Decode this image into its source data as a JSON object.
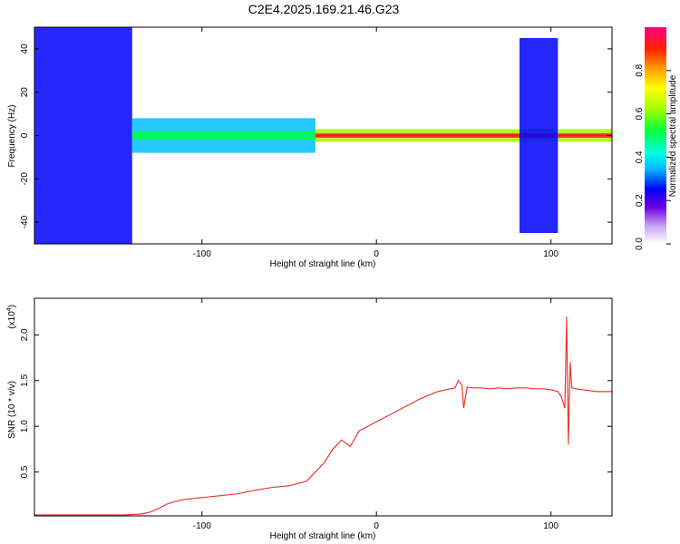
{
  "title": "C2E4.2025.169.21.46.G23",
  "chart_data": [
    {
      "type": "heatmap",
      "xlabel": "Height of straight line (km)",
      "ylabel": "Frequency (Hz)",
      "xlim": [
        -196,
        135
      ],
      "ylim": [
        -50,
        50
      ],
      "x_ticks": [
        {
          "v": -100,
          "label": "-100"
        },
        {
          "v": 0,
          "label": "0"
        },
        {
          "v": 100,
          "label": "100"
        }
      ],
      "y_ticks": [
        {
          "v": -40,
          "label": "-40"
        },
        {
          "v": -20,
          "label": "-20"
        },
        {
          "v": 0,
          "label": "0"
        },
        {
          "v": 20,
          "label": "20"
        },
        {
          "v": 40,
          "label": "40"
        }
      ],
      "colorbar": {
        "label": "Normalized spectral amplitude",
        "range": [
          0,
          1
        ],
        "ticks": [
          {
            "v": 0.0,
            "label": "0.0"
          },
          {
            "v": 0.2,
            "label": "0.2"
          },
          {
            "v": 0.4,
            "label": "0.4"
          },
          {
            "v": 0.6,
            "label": "0.6"
          },
          {
            "v": 0.8,
            "label": "0.8"
          }
        ]
      },
      "regions": [
        {
          "x": [
            -196,
            -140
          ],
          "y": [
            -50,
            50
          ],
          "level": 0.18
        },
        {
          "x": [
            -140,
            -35
          ],
          "y": [
            -8,
            8
          ],
          "level": 0.3
        },
        {
          "x": [
            -140,
            -35
          ],
          "y": [
            -2,
            2
          ],
          "level": 0.45
        },
        {
          "x": [
            -35,
            135
          ],
          "y": [
            -3,
            3
          ],
          "level": 0.6
        },
        {
          "x": [
            -35,
            135
          ],
          "y": [
            -1,
            1
          ],
          "level": 0.85
        },
        {
          "x": [
            -35,
            135
          ],
          "y": [
            -0.4,
            0.4
          ],
          "level": 1.0
        },
        {
          "x": [
            82,
            104
          ],
          "y": [
            -45,
            45
          ],
          "level": 0.2
        }
      ]
    },
    {
      "type": "line",
      "xlabel": "Height of straight line (km)",
      "ylabel": "SNR (10 * v/v)",
      "y_multiplier": "(x10",
      "y_multiplier_exp": "4",
      "y_multiplier_close": ")",
      "xlim": [
        -196,
        135
      ],
      "ylim": [
        0.02,
        2.4
      ],
      "x_ticks": [
        {
          "v": -100,
          "label": "-100"
        },
        {
          "v": 0,
          "label": "0"
        },
        {
          "v": 100,
          "label": "100"
        }
      ],
      "y_ticks": [
        {
          "v": 0.5,
          "label": "0.5"
        },
        {
          "v": 1.0,
          "label": "1.0"
        },
        {
          "v": 1.5,
          "label": "1.5"
        },
        {
          "v": 2.0,
          "label": "2.0"
        }
      ],
      "series": [
        {
          "color": "#e8382f",
          "x": [
            -196,
            -180,
            -160,
            -145,
            -135,
            -130,
            -125,
            -120,
            -115,
            -110,
            -100,
            -90,
            -80,
            -70,
            -60,
            -50,
            -40,
            -35,
            -30,
            -25,
            -20,
            -15,
            -12,
            -10,
            -5,
            0,
            5,
            10,
            15,
            20,
            25,
            30,
            35,
            40,
            45,
            47,
            49,
            50,
            52,
            55,
            60,
            65,
            70,
            75,
            80,
            83,
            86,
            90,
            95,
            100,
            104,
            106,
            108,
            109,
            110,
            111,
            112,
            114,
            118,
            122,
            126,
            130,
            135
          ],
          "y": [
            0.03,
            0.03,
            0.03,
            0.03,
            0.04,
            0.06,
            0.1,
            0.15,
            0.18,
            0.2,
            0.22,
            0.24,
            0.26,
            0.3,
            0.33,
            0.35,
            0.4,
            0.5,
            0.6,
            0.75,
            0.85,
            0.78,
            0.88,
            0.95,
            1.0,
            1.05,
            1.1,
            1.15,
            1.2,
            1.25,
            1.3,
            1.34,
            1.38,
            1.4,
            1.42,
            1.5,
            1.45,
            1.2,
            1.43,
            1.42,
            1.42,
            1.41,
            1.42,
            1.41,
            1.42,
            1.42,
            1.42,
            1.41,
            1.41,
            1.4,
            1.38,
            1.32,
            1.2,
            2.2,
            0.8,
            1.7,
            1.42,
            1.41,
            1.4,
            1.39,
            1.38,
            1.38,
            1.38
          ]
        }
      ]
    }
  ]
}
